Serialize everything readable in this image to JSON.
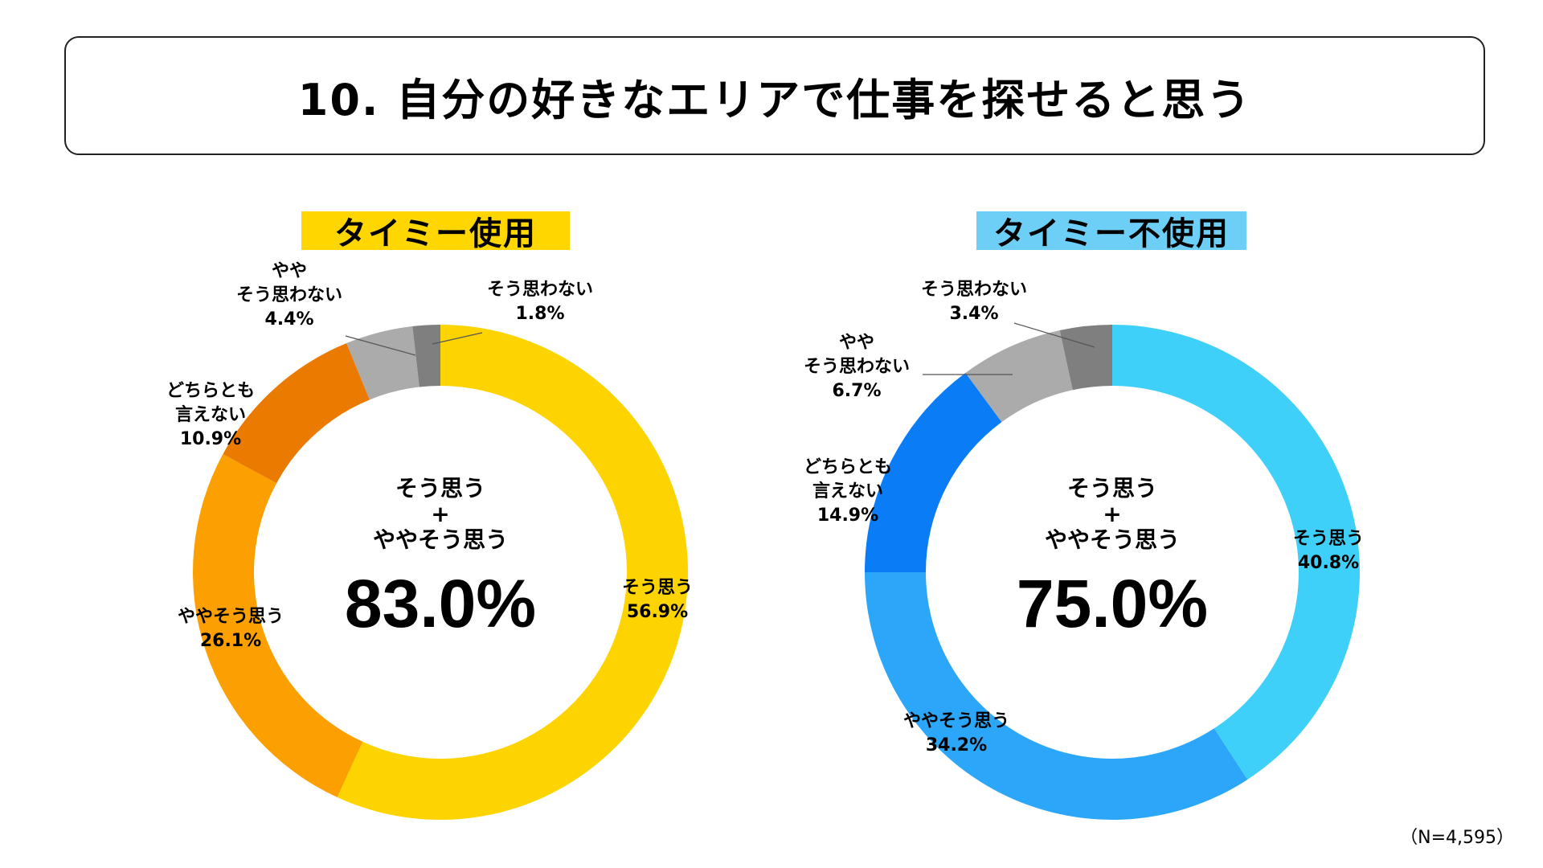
{
  "title": "10. 自分の好きなエリアで仕事を探せると思う",
  "footnote": "（N=4,595）",
  "chart_data": [
    {
      "type": "pie",
      "variant": "donut",
      "title": "タイミー使用",
      "badge_color": "#FFD600",
      "categories": [
        "そう思う",
        "ややそう思う",
        "どちらとも言えない",
        "やや そう思わない",
        "そう思わない"
      ],
      "label_lines": [
        [
          "そう思う"
        ],
        [
          "ややそう思う"
        ],
        [
          "どちらとも",
          "言えない"
        ],
        [
          "やや",
          "そう思わない"
        ],
        [
          "そう思わない"
        ]
      ],
      "values": [
        56.9,
        26.1,
        10.9,
        4.4,
        1.8
      ],
      "value_labels": [
        "56.9%",
        "26.1%",
        "10.9%",
        "4.4%",
        "1.8%"
      ],
      "colors": [
        "#FDD400",
        "#FBA000",
        "#EB7A00",
        "#ABABAB",
        "#7F7F7F"
      ],
      "center_lines": [
        "そう思う",
        "+",
        "ややそう思う"
      ],
      "center_value": "83.0%"
    },
    {
      "type": "pie",
      "variant": "donut",
      "title": "タイミー不使用",
      "badge_color": "#6DCFF6",
      "categories": [
        "そう思う",
        "ややそう思う",
        "どちらとも言えない",
        "やや そう思わない",
        "そう思わない"
      ],
      "label_lines": [
        [
          "そう思う"
        ],
        [
          "ややそう思う"
        ],
        [
          "どちらとも",
          "言えない"
        ],
        [
          "やや",
          "そう思わない"
        ],
        [
          "そう思わない"
        ]
      ],
      "values": [
        40.8,
        34.2,
        14.9,
        6.7,
        3.4
      ],
      "value_labels": [
        "40.8%",
        "34.2%",
        "14.9%",
        "6.7%",
        "3.4%"
      ],
      "colors": [
        "#3FD0FA",
        "#2BA6F8",
        "#0A7CF5",
        "#ABABAB",
        "#7F7F7F"
      ],
      "center_lines": [
        "そう思う",
        "+",
        "ややそう思う"
      ],
      "center_value": "75.0%"
    }
  ]
}
